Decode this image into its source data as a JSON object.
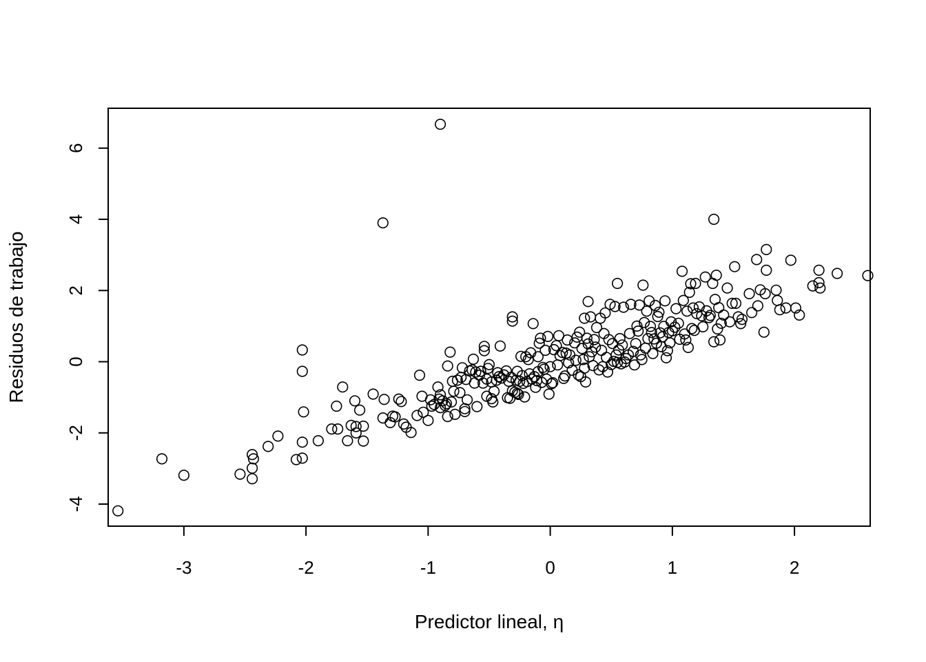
{
  "chart_data": {
    "type": "scatter",
    "title": "",
    "xlabel": "Predictor lineal, η",
    "ylabel": "Residuos de trabajo",
    "xlim": [
      -3.62,
      2.62
    ],
    "ylim": [
      -4.62,
      7.12
    ],
    "x_ticks": [
      -3,
      -2,
      -1,
      0,
      1,
      2
    ],
    "y_ticks": [
      -4,
      -2,
      0,
      2,
      4,
      6
    ],
    "grid": false,
    "legend": "none",
    "marker": "open-circle",
    "color": "#000000",
    "points": [
      [
        -3.54,
        -4.19
      ],
      [
        -3.18,
        -2.73
      ],
      [
        -3.0,
        -3.19
      ],
      [
        -2.54,
        -3.16
      ],
      [
        -2.44,
        -2.61
      ],
      [
        -2.43,
        -2.73
      ],
      [
        -2.44,
        -2.99
      ],
      [
        -2.44,
        -3.29
      ],
      [
        -2.31,
        -2.38
      ],
      [
        -2.23,
        -2.09
      ],
      [
        -2.08,
        -2.75
      ],
      [
        -2.03,
        -2.71
      ],
      [
        -2.03,
        -2.26
      ],
      [
        -2.02,
        -1.41
      ],
      [
        -2.03,
        -0.27
      ],
      [
        -2.03,
        0.33
      ],
      [
        -1.9,
        -2.22
      ],
      [
        -1.79,
        -1.89
      ],
      [
        -1.74,
        -1.89
      ],
      [
        -1.75,
        -1.25
      ],
      [
        -1.7,
        -0.71
      ],
      [
        -1.66,
        -2.22
      ],
      [
        -1.63,
        -1.79
      ],
      [
        -1.6,
        -1.1
      ],
      [
        -1.59,
        -2.0
      ],
      [
        -1.59,
        -1.82
      ],
      [
        -1.56,
        -1.36
      ],
      [
        -1.53,
        -2.23
      ],
      [
        -1.53,
        -1.81
      ],
      [
        -1.45,
        -0.91
      ],
      [
        -1.37,
        -1.58
      ],
      [
        -1.36,
        -1.06
      ],
      [
        -1.37,
        3.9
      ],
      [
        -1.31,
        -1.71
      ],
      [
        -1.29,
        -1.53
      ],
      [
        -1.27,
        -1.55
      ],
      [
        -1.24,
        -1.05
      ],
      [
        -1.22,
        -1.12
      ],
      [
        -1.2,
        -1.75
      ],
      [
        -1.18,
        -1.84
      ],
      [
        -1.14,
        -1.99
      ],
      [
        -1.09,
        -1.51
      ],
      [
        -1.07,
        -0.38
      ],
      [
        -1.05,
        -0.97
      ],
      [
        -1.04,
        -1.42
      ],
      [
        -1.0,
        -1.65
      ],
      [
        -0.98,
        -1.07
      ],
      [
        -0.97,
        -1.25
      ],
      [
        -0.95,
        -1.2
      ],
      [
        -0.92,
        -0.71
      ],
      [
        -0.91,
        -1.05
      ],
      [
        -0.9,
        -0.93
      ],
      [
        -0.9,
        -1.29
      ],
      [
        -0.9,
        6.67
      ],
      [
        -0.88,
        -1.1
      ],
      [
        -0.86,
        -1.23
      ],
      [
        -0.85,
        -1.18
      ],
      [
        -0.84,
        -1.54
      ],
      [
        -0.84,
        -0.12
      ],
      [
        -0.82,
        0.27
      ],
      [
        -0.81,
        -1.13
      ],
      [
        -0.8,
        -0.55
      ],
      [
        -0.79,
        -0.83
      ],
      [
        -0.78,
        -1.48
      ],
      [
        -0.76,
        -0.52
      ],
      [
        -0.74,
        -0.87
      ],
      [
        -0.73,
        -0.44
      ],
      [
        -0.72,
        -0.17
      ],
      [
        -0.7,
        -1.32
      ],
      [
        -0.7,
        -1.4
      ],
      [
        -0.69,
        -0.5
      ],
      [
        -0.68,
        -1.07
      ],
      [
        -0.66,
        -0.26
      ],
      [
        -0.64,
        -0.23
      ],
      [
        -0.63,
        0.07
      ],
      [
        -0.62,
        -0.6
      ],
      [
        -0.61,
        -0.29
      ],
      [
        -0.6,
        -1.26
      ],
      [
        -0.58,
        -0.38
      ],
      [
        -0.57,
        -0.27
      ],
      [
        -0.55,
        -0.6
      ],
      [
        -0.54,
        0.31
      ],
      [
        -0.54,
        0.43
      ],
      [
        -0.52,
        -0.97
      ],
      [
        -0.52,
        -0.49
      ],
      [
        -0.51,
        -0.19
      ],
      [
        -0.5,
        -0.08
      ],
      [
        -0.48,
        -1.04
      ],
      [
        -0.48,
        -0.57
      ],
      [
        -0.47,
        -1.13
      ],
      [
        -0.46,
        -0.83
      ],
      [
        -0.44,
        -0.52
      ],
      [
        -0.43,
        -0.31
      ],
      [
        -0.42,
        -0.42
      ],
      [
        -0.41,
        0.44
      ],
      [
        -0.4,
        -0.46
      ],
      [
        -0.38,
        -0.37
      ],
      [
        -0.36,
        -0.26
      ],
      [
        -0.35,
        -1.01
      ],
      [
        -0.34,
        -0.55
      ],
      [
        -0.33,
        -1.03
      ],
      [
        -0.32,
        -0.44
      ],
      [
        -0.31,
        -0.82
      ],
      [
        -0.31,
        1.26
      ],
      [
        -0.31,
        1.14
      ],
      [
        -0.29,
        -0.86
      ],
      [
        -0.28,
        -0.52
      ],
      [
        -0.27,
        -0.89
      ],
      [
        -0.27,
        -0.27
      ],
      [
        -0.26,
        -0.92
      ],
      [
        -0.25,
        -0.55
      ],
      [
        -0.24,
        0.15
      ],
      [
        -0.23,
        -0.39
      ],
      [
        -0.22,
        -0.61
      ],
      [
        -0.21,
        -0.99
      ],
      [
        -0.2,
        0.14
      ],
      [
        -0.19,
        -0.56
      ],
      [
        -0.18,
        0.06
      ],
      [
        -0.17,
        -0.34
      ],
      [
        -0.16,
        0.25
      ],
      [
        -0.15,
        -0.49
      ],
      [
        -0.14,
        1.07
      ],
      [
        -0.13,
        -0.42
      ],
      [
        -0.12,
        -0.72
      ],
      [
        -0.11,
        -0.53
      ],
      [
        -0.1,
        -0.28
      ],
      [
        -0.1,
        0.14
      ],
      [
        -0.09,
        0.52
      ],
      [
        -0.08,
        0.66
      ],
      [
        -0.07,
        -0.58
      ],
      [
        -0.06,
        -0.16
      ],
      [
        -0.05,
        -0.21
      ],
      [
        -0.04,
        0.32
      ],
      [
        -0.03,
        -0.49
      ],
      [
        -0.02,
        0.71
      ],
      [
        -0.01,
        -0.91
      ],
      [
        0.0,
        -0.14
      ],
      [
        0.01,
        -0.62
      ],
      [
        0.02,
        -0.59
      ],
      [
        0.03,
        0.34
      ],
      [
        0.05,
        0.45
      ],
      [
        0.06,
        -0.09
      ],
      [
        0.07,
        0.73
      ],
      [
        0.08,
        0.17
      ],
      [
        0.1,
        0.26
      ],
      [
        0.11,
        -0.47
      ],
      [
        0.12,
        -0.4
      ],
      [
        0.13,
        0.24
      ],
      [
        0.14,
        0.61
      ],
      [
        0.15,
        -0.03
      ],
      [
        0.16,
        0.19
      ],
      [
        0.18,
        -0.24
      ],
      [
        0.2,
        0.53
      ],
      [
        0.21,
        0.04
      ],
      [
        0.22,
        0.69
      ],
      [
        0.23,
        -0.37
      ],
      [
        0.24,
        0.83
      ],
      [
        0.25,
        -0.42
      ],
      [
        0.26,
        0.37
      ],
      [
        0.27,
        0.06
      ],
      [
        0.28,
        1.22
      ],
      [
        0.28,
        -0.18
      ],
      [
        0.29,
        -0.57
      ],
      [
        0.3,
        0.66
      ],
      [
        0.31,
        0.5
      ],
      [
        0.31,
        1.69
      ],
      [
        0.32,
        0.14
      ],
      [
        0.33,
        1.26
      ],
      [
        0.34,
        0.28
      ],
      [
        0.35,
        -0.11
      ],
      [
        0.36,
        0.62
      ],
      [
        0.37,
        0.41
      ],
      [
        0.38,
        0.96
      ],
      [
        0.4,
        -0.23
      ],
      [
        0.41,
        1.22
      ],
      [
        0.42,
        0.32
      ],
      [
        0.43,
        -0.14
      ],
      [
        0.44,
        0.79
      ],
      [
        0.45,
        1.37
      ],
      [
        0.46,
        0.12
      ],
      [
        0.47,
        -0.29
      ],
      [
        0.48,
        0.62
      ],
      [
        0.49,
        1.61
      ],
      [
        0.5,
        -0.08
      ],
      [
        0.51,
        0.51
      ],
      [
        0.52,
        0.01
      ],
      [
        0.53,
        1.55
      ],
      [
        0.54,
        0.19
      ],
      [
        0.55,
        -0.02
      ],
      [
        0.55,
        2.2
      ],
      [
        0.56,
        0.33
      ],
      [
        0.57,
        0.65
      ],
      [
        0.58,
        -0.06
      ],
      [
        0.59,
        0.47
      ],
      [
        0.6,
        1.53
      ],
      [
        0.61,
        -0.01
      ],
      [
        0.62,
        0.09
      ],
      [
        0.64,
        0.19
      ],
      [
        0.65,
        0.79
      ],
      [
        0.66,
        1.61
      ],
      [
        0.68,
        0.29
      ],
      [
        0.69,
        -0.09
      ],
      [
        0.7,
        0.51
      ],
      [
        0.71,
        1.0
      ],
      [
        0.72,
        0.86
      ],
      [
        0.73,
        1.59
      ],
      [
        0.74,
        0.19
      ],
      [
        0.75,
        0.06
      ],
      [
        0.76,
        2.15
      ],
      [
        0.77,
        1.1
      ],
      [
        0.78,
        0.38
      ],
      [
        0.79,
        1.42
      ],
      [
        0.8,
        0.65
      ],
      [
        0.81,
        1.71
      ],
      [
        0.82,
        0.99
      ],
      [
        0.83,
        0.82
      ],
      [
        0.84,
        0.23
      ],
      [
        0.85,
        0.64
      ],
      [
        0.86,
        1.58
      ],
      [
        0.87,
        0.52
      ],
      [
        0.88,
        1.27
      ],
      [
        0.89,
        1.39
      ],
      [
        0.9,
        0.81
      ],
      [
        0.91,
        0.42
      ],
      [
        0.92,
        0.7
      ],
      [
        0.93,
        0.99
      ],
      [
        0.94,
        1.71
      ],
      [
        0.95,
        0.11
      ],
      [
        0.96,
        0.31
      ],
      [
        0.97,
        0.82
      ],
      [
        0.98,
        0.53
      ],
      [
        0.99,
        1.12
      ],
      [
        1.0,
        0.87
      ],
      [
        1.02,
        0.97
      ],
      [
        1.03,
        1.49
      ],
      [
        1.05,
        1.08
      ],
      [
        1.06,
        0.63
      ],
      [
        1.08,
        2.54
      ],
      [
        1.09,
        1.72
      ],
      [
        1.1,
        0.78
      ],
      [
        1.11,
        0.61
      ],
      [
        1.12,
        1.42
      ],
      [
        1.13,
        0.4
      ],
      [
        1.14,
        1.95
      ],
      [
        1.15,
        2.19
      ],
      [
        1.16,
        0.93
      ],
      [
        1.17,
        1.51
      ],
      [
        1.18,
        0.88
      ],
      [
        1.19,
        2.2
      ],
      [
        1.2,
        1.35
      ],
      [
        1.22,
        1.54
      ],
      [
        1.24,
        1.29
      ],
      [
        1.25,
        0.98
      ],
      [
        1.27,
        2.38
      ],
      [
        1.28,
        1.43
      ],
      [
        1.3,
        1.24
      ],
      [
        1.31,
        1.3
      ],
      [
        1.33,
        2.2
      ],
      [
        1.34,
        0.56
      ],
      [
        1.34,
        4.0
      ],
      [
        1.35,
        1.75
      ],
      [
        1.36,
        2.43
      ],
      [
        1.37,
        0.92
      ],
      [
        1.38,
        1.52
      ],
      [
        1.39,
        0.61
      ],
      [
        1.4,
        1.08
      ],
      [
        1.42,
        1.31
      ],
      [
        1.45,
        2.07
      ],
      [
        1.47,
        1.12
      ],
      [
        1.49,
        1.64
      ],
      [
        1.51,
        2.67
      ],
      [
        1.52,
        1.64
      ],
      [
        1.54,
        1.26
      ],
      [
        1.56,
        1.07
      ],
      [
        1.57,
        1.19
      ],
      [
        1.63,
        1.91
      ],
      [
        1.65,
        1.38
      ],
      [
        1.69,
        2.87
      ],
      [
        1.7,
        1.57
      ],
      [
        1.72,
        2.02
      ],
      [
        1.75,
        0.83
      ],
      [
        1.76,
        1.91
      ],
      [
        1.77,
        2.57
      ],
      [
        1.77,
        3.15
      ],
      [
        1.85,
        2.01
      ],
      [
        1.86,
        1.72
      ],
      [
        1.88,
        1.46
      ],
      [
        1.93,
        1.51
      ],
      [
        1.97,
        2.85
      ],
      [
        2.01,
        1.51
      ],
      [
        2.04,
        1.31
      ],
      [
        2.15,
        2.13
      ],
      [
        2.2,
        2.57
      ],
      [
        2.2,
        2.22
      ],
      [
        2.21,
        2.07
      ],
      [
        2.35,
        2.48
      ],
      [
        2.6,
        2.42
      ]
    ]
  }
}
